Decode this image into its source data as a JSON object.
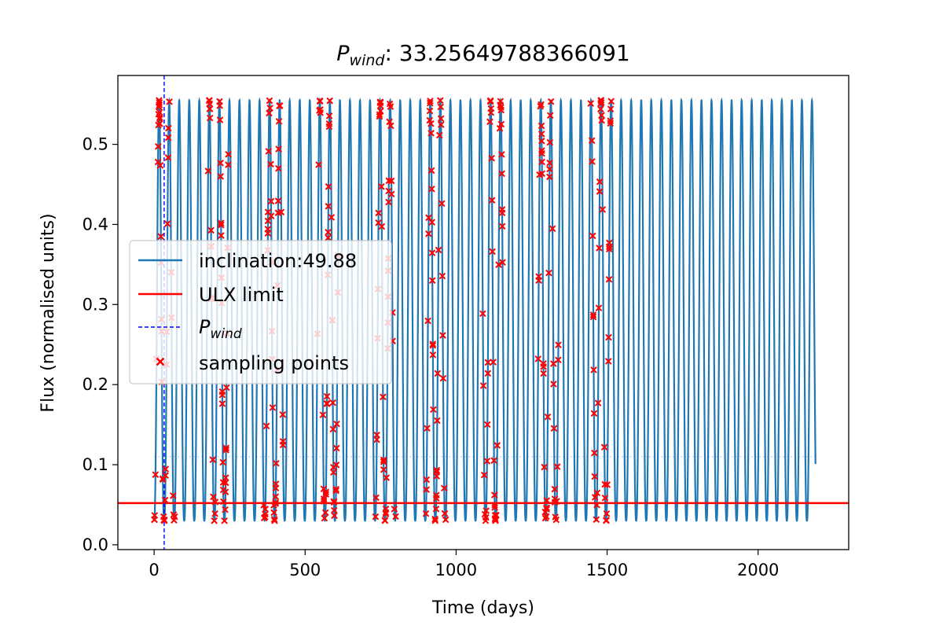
{
  "chart_data": {
    "type": "line",
    "title_symbol": "P",
    "title_subscript": "wind",
    "title_value": ": 33.25649788366091",
    "xlabel": "Time (days)",
    "ylabel": "Flux (normalised units)",
    "xlim": [
      -120,
      2300
    ],
    "ylim": [
      -0.006,
      0.586
    ],
    "xticks": [
      0,
      500,
      1000,
      1500,
      2000
    ],
    "xtick_labels": [
      "0",
      "500",
      "1000",
      "1500",
      "2000"
    ],
    "yticks": [
      0.0,
      0.1,
      0.2,
      0.3,
      0.4,
      0.5
    ],
    "ytick_labels": [
      "0.0",
      "0.1",
      "0.2",
      "0.3",
      "0.4",
      "0.5"
    ],
    "grid": false,
    "legend_position": "center-left",
    "flux_curve": {
      "name": "inclination:49.88",
      "color": "#1f77b4",
      "x_start": 0,
      "x_end": 2190,
      "period_days": 33.25649788366091,
      "min_flux": 0.03,
      "max_flux": 0.555,
      "plateau_level": 0.11
    },
    "ulx_limit": {
      "name": "ULX limit",
      "color": "#ff0000",
      "y": 0.052
    },
    "p_wind_marker": {
      "name_symbol": "P",
      "name_subscript": "wind",
      "color": "#0000ff",
      "x": 33.26
    },
    "sampling_points": {
      "name": "sampling points",
      "color": "#ff0000",
      "marker": "x",
      "window_starts": [
        0,
        178,
        362,
        540,
        730,
        900,
        1085,
        1270,
        1445
      ],
      "window_duration_days": 70,
      "points_per_window": 45
    }
  }
}
